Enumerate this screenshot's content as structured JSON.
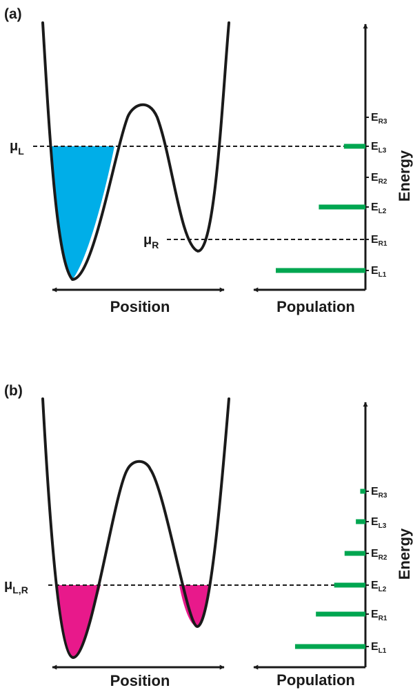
{
  "colors": {
    "curve": "#1a1a1a",
    "fill_left_a": "#00aee8",
    "fill_b": "#e8198b",
    "population_bar": "#00a650",
    "dashed": "#1a1a1a"
  },
  "panels": [
    {
      "label": "(a)",
      "position_label": "Position",
      "population_label": "Population",
      "energy_label": "Energy",
      "chemical_potentials": [
        {
          "symbol": "μ",
          "subscript": "L"
        },
        {
          "symbol": "μ",
          "subscript": "R"
        }
      ],
      "levels": [
        {
          "letter": "E",
          "subscript": "R3",
          "population": 0
        },
        {
          "letter": "E",
          "subscript": "L3",
          "population": 0.24
        },
        {
          "letter": "E",
          "subscript": "R2",
          "population": 0
        },
        {
          "letter": "E",
          "subscript": "L2",
          "population": 0.52
        },
        {
          "letter": "E",
          "subscript": "R1",
          "population": 0
        },
        {
          "letter": "E",
          "subscript": "L1",
          "population": 1.0
        }
      ]
    },
    {
      "label": "(b)",
      "position_label": "Position",
      "population_label": "Population",
      "energy_label": "Energy",
      "chemical_potentials": [
        {
          "symbol": "μ",
          "subscript": "L,R"
        }
      ],
      "levels": [
        {
          "letter": "E",
          "subscript": "R3",
          "population": 0.06
        },
        {
          "letter": "E",
          "subscript": "L3",
          "population": 0.11
        },
        {
          "letter": "E",
          "subscript": "R2",
          "population": 0.24
        },
        {
          "letter": "E",
          "subscript": "L2",
          "population": 0.36
        },
        {
          "letter": "E",
          "subscript": "R1",
          "population": 0.57
        },
        {
          "letter": "E",
          "subscript": "L1",
          "population": 0.81
        }
      ]
    }
  ]
}
